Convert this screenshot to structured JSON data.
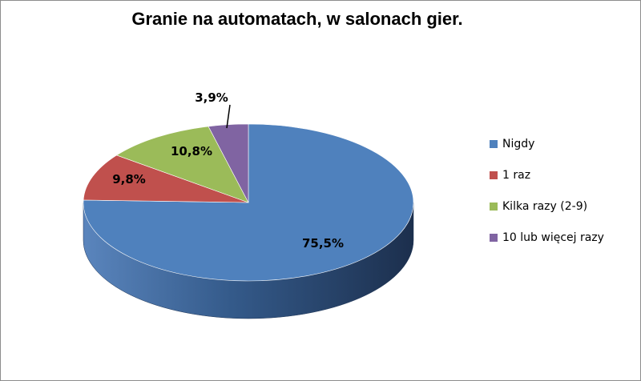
{
  "chart_data": {
    "type": "pie",
    "title": "Granie na automatach, w salonach gier.",
    "categories": [
      "Nigdy",
      "1 raz",
      "Kilka razy (2-9)",
      "10 lub więcej razy"
    ],
    "values": [
      75.5,
      9.8,
      10.8,
      3.9
    ],
    "value_labels": [
      "75,5%",
      "9,8%",
      "10,8%",
      "3,9%"
    ],
    "colors": [
      "#4F81BD",
      "#C0504D",
      "#9BBB59",
      "#8064A2"
    ],
    "legend_position": "right",
    "style": "3d"
  }
}
